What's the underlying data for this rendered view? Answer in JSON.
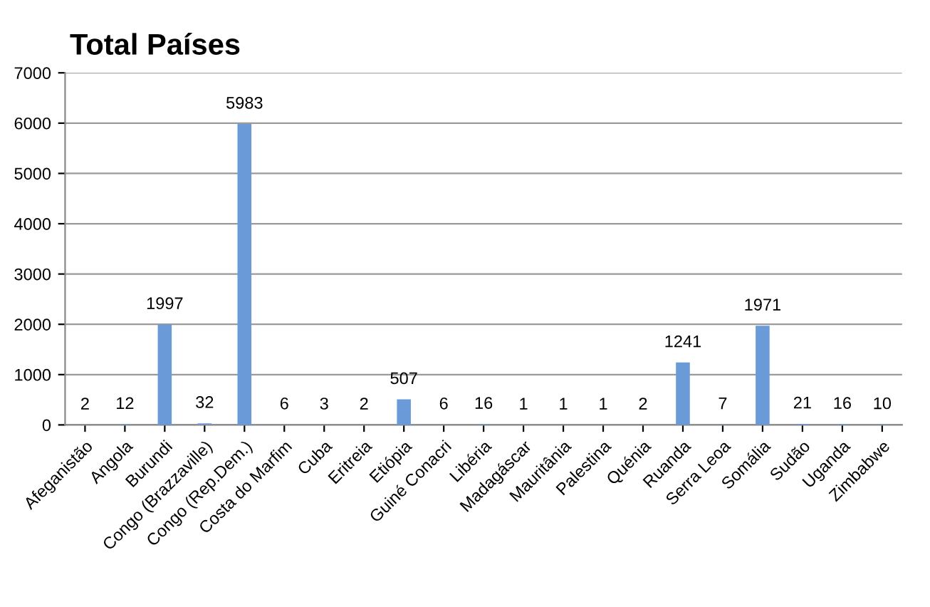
{
  "chart_data": {
    "type": "bar",
    "title": "Total Países",
    "categories": [
      "Afeganistão",
      "Angola",
      "Burundi",
      "Congo (Brazzaville)",
      "Congo (Rep.Dem.)",
      "Costa do Marfim",
      "Cuba",
      "Eritreia",
      "Etiópia",
      "Guiné Conacri",
      "Libéria",
      "Madagáscar",
      "Mauritânia",
      "Palestina",
      "Quénia",
      "Ruanda",
      "Serra Leoa",
      "Somália",
      "Sudão",
      "Uganda",
      "Zimbabwe"
    ],
    "values": [
      2,
      12,
      1997,
      32,
      5983,
      6,
      3,
      2,
      507,
      6,
      16,
      1,
      1,
      1,
      2,
      1241,
      7,
      1971,
      21,
      16,
      10
    ],
    "color": "#6a9bd8",
    "ylim": [
      0,
      7000
    ],
    "yticks": [
      0,
      1000,
      2000,
      3000,
      4000,
      5000,
      6000,
      7000
    ],
    "grid": "y",
    "data_labels": true,
    "legend": false
  }
}
